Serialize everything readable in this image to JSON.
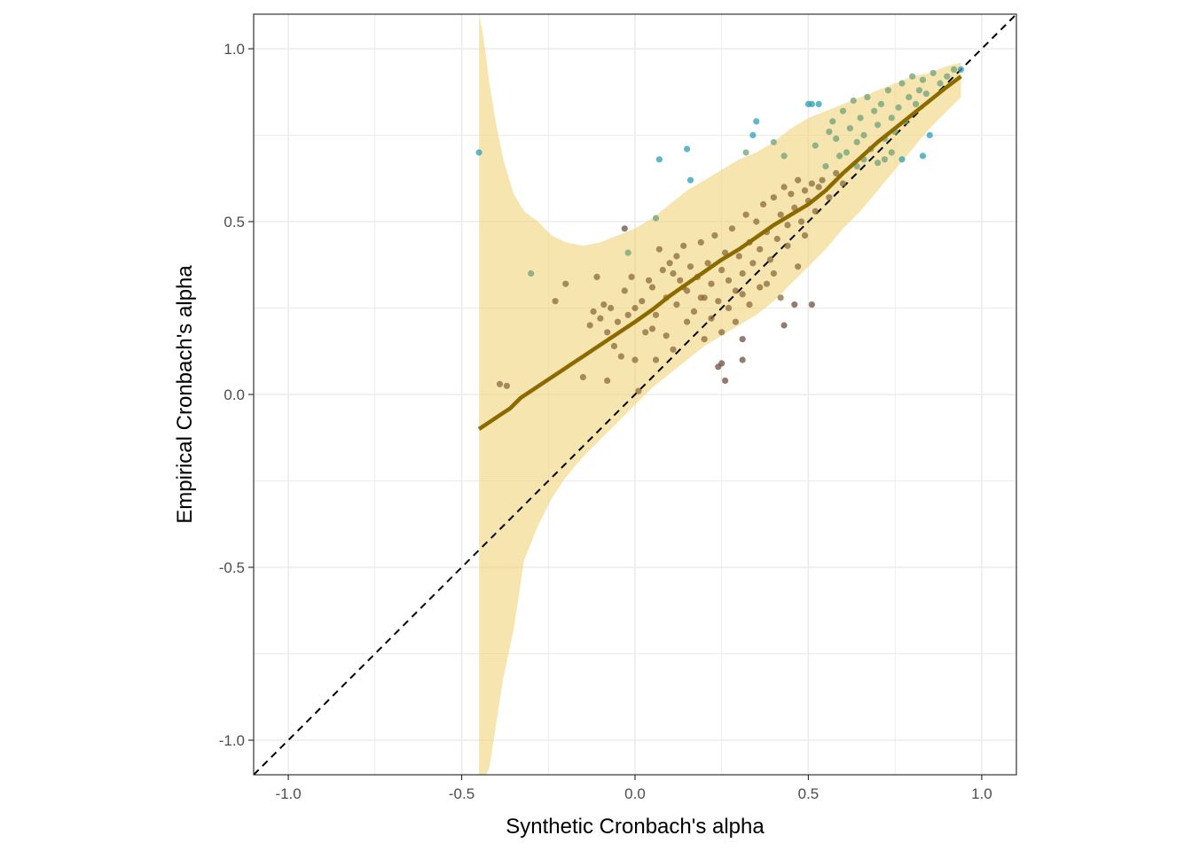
{
  "chart_data": {
    "type": "scatter",
    "title": "",
    "xlabel": "Synthetic Cronbach's alpha",
    "ylabel": "Empirical Cronbach's alpha",
    "xlim": [
      -1.1,
      1.1
    ],
    "ylim": [
      -1.1,
      1.1
    ],
    "x_ticks": [
      -1.0,
      -0.5,
      0.0,
      0.5,
      1.0
    ],
    "y_ticks": [
      -1.0,
      -0.5,
      0.0,
      0.5,
      1.0
    ],
    "x_tick_labels": [
      "-1.0",
      "-0.5",
      "0.0",
      "0.5",
      "1.0"
    ],
    "y_tick_labels": [
      "-1.0",
      "-0.5",
      "0.0",
      "0.5",
      "1.0"
    ],
    "grid": true,
    "legend": "none",
    "colors": {
      "band": "#f0d479",
      "fit_line": "#8b6a00",
      "reference_line": "#000000",
      "points_brown": "#8b6a3e",
      "points_green": "#6fa07a",
      "points_teal": "#2f9db5",
      "points_dark": "#6e5040"
    },
    "reference_line": {
      "slope": 1,
      "intercept": 0,
      "style": "dashed"
    },
    "fit_line": {
      "x": [
        -0.45,
        -0.42,
        -0.39,
        -0.36,
        -0.33,
        -0.3,
        -0.27,
        -0.24,
        -0.21,
        -0.18,
        -0.15,
        -0.12,
        -0.09,
        -0.06,
        -0.03,
        0.0,
        0.05,
        0.1,
        0.15,
        0.2,
        0.25,
        0.3,
        0.35,
        0.4,
        0.45,
        0.5,
        0.55,
        0.6,
        0.65,
        0.7,
        0.75,
        0.8,
        0.85,
        0.9,
        0.94
      ],
      "y": [
        -0.1,
        -0.08,
        -0.06,
        -0.04,
        -0.01,
        0.01,
        0.03,
        0.05,
        0.07,
        0.09,
        0.11,
        0.13,
        0.15,
        0.17,
        0.19,
        0.21,
        0.245,
        0.285,
        0.32,
        0.355,
        0.39,
        0.42,
        0.455,
        0.49,
        0.52,
        0.55,
        0.59,
        0.64,
        0.685,
        0.73,
        0.77,
        0.81,
        0.85,
        0.89,
        0.92
      ]
    },
    "band": {
      "x": [
        -0.45,
        -0.44,
        -0.43,
        -0.42,
        -0.4,
        -0.38,
        -0.35,
        -0.32,
        -0.28,
        -0.24,
        -0.2,
        -0.15,
        -0.1,
        -0.05,
        0.0,
        0.05,
        0.1,
        0.15,
        0.2,
        0.25,
        0.3,
        0.35,
        0.4,
        0.45,
        0.5,
        0.55,
        0.6,
        0.65,
        0.7,
        0.75,
        0.8,
        0.85,
        0.9,
        0.94
      ],
      "upper": [
        1.1,
        1.05,
        0.98,
        0.9,
        0.78,
        0.68,
        0.58,
        0.53,
        0.5,
        0.46,
        0.44,
        0.43,
        0.44,
        0.46,
        0.48,
        0.51,
        0.55,
        0.59,
        0.62,
        0.65,
        0.68,
        0.7,
        0.73,
        0.77,
        0.8,
        0.82,
        0.84,
        0.86,
        0.88,
        0.9,
        0.92,
        0.93,
        0.95,
        0.96
      ],
      "lower": [
        -1.1,
        -1.1,
        -1.1,
        -1.08,
        -0.95,
        -0.82,
        -0.68,
        -0.48,
        -0.38,
        -0.3,
        -0.24,
        -0.18,
        -0.13,
        -0.08,
        -0.03,
        0.02,
        0.06,
        0.1,
        0.14,
        0.17,
        0.2,
        0.23,
        0.27,
        0.32,
        0.37,
        0.42,
        0.48,
        0.53,
        0.59,
        0.65,
        0.71,
        0.77,
        0.82,
        0.86
      ]
    },
    "series": [
      {
        "color": "#8b6a3e",
        "points": [
          [
            -0.39,
            0.03
          ],
          [
            -0.37,
            0.025
          ],
          [
            -0.23,
            0.27
          ],
          [
            -0.2,
            0.32
          ],
          [
            -0.15,
            0.05
          ],
          [
            -0.13,
            0.2
          ],
          [
            -0.12,
            0.24
          ],
          [
            -0.11,
            0.34
          ],
          [
            -0.1,
            0.22
          ],
          [
            -0.09,
            0.26
          ],
          [
            -0.08,
            0.18
          ],
          [
            -0.08,
            0.04
          ],
          [
            -0.07,
            0.25
          ],
          [
            -0.06,
            0.14
          ],
          [
            -0.05,
            0.21
          ],
          [
            -0.04,
            0.11
          ],
          [
            -0.03,
            0.3
          ],
          [
            -0.02,
            0.23
          ],
          [
            -0.01,
            0.34
          ],
          [
            0.0,
            0.25
          ],
          [
            0.0,
            0.1
          ],
          [
            0.01,
            0.01
          ],
          [
            0.02,
            0.27
          ],
          [
            0.03,
            0.18
          ],
          [
            0.04,
            0.33
          ],
          [
            0.05,
            0.31
          ],
          [
            0.06,
            0.23
          ],
          [
            0.06,
            0.1
          ],
          [
            0.07,
            0.42
          ],
          [
            0.08,
            0.36
          ],
          [
            0.09,
            0.28
          ],
          [
            0.1,
            0.38
          ],
          [
            0.11,
            0.35
          ],
          [
            0.12,
            0.26
          ],
          [
            0.12,
            0.4
          ],
          [
            0.13,
            0.33
          ],
          [
            0.14,
            0.43
          ],
          [
            0.15,
            0.3
          ],
          [
            0.16,
            0.37
          ],
          [
            0.17,
            0.24
          ],
          [
            0.18,
            0.34
          ],
          [
            0.19,
            0.44
          ],
          [
            0.2,
            0.28
          ],
          [
            0.21,
            0.38
          ],
          [
            0.22,
            0.32
          ],
          [
            0.23,
            0.46
          ],
          [
            0.24,
            0.27
          ],
          [
            0.25,
            0.36
          ],
          [
            0.26,
            0.41
          ],
          [
            0.27,
            0.33
          ],
          [
            0.28,
            0.48
          ],
          [
            0.29,
            0.3
          ],
          [
            0.3,
            0.4
          ],
          [
            0.31,
            0.35
          ],
          [
            0.32,
            0.52
          ],
          [
            0.33,
            0.44
          ],
          [
            0.34,
            0.38
          ],
          [
            0.35,
            0.5
          ],
          [
            0.36,
            0.42
          ],
          [
            0.37,
            0.55
          ],
          [
            0.38,
            0.47
          ],
          [
            0.39,
            0.39
          ],
          [
            0.4,
            0.57
          ],
          [
            0.41,
            0.45
          ],
          [
            0.42,
            0.52
          ],
          [
            0.43,
            0.6
          ],
          [
            0.44,
            0.49
          ],
          [
            0.45,
            0.58
          ],
          [
            0.46,
            0.54
          ],
          [
            0.47,
            0.62
          ],
          [
            0.48,
            0.5
          ],
          [
            0.49,
            0.59
          ],
          [
            0.5,
            0.56
          ],
          [
            0.51,
            0.61
          ],
          [
            0.52,
            0.53
          ],
          [
            0.53,
            0.6
          ],
          [
            0.54,
            0.62
          ],
          [
            0.56,
            0.57
          ],
          [
            0.58,
            0.64
          ],
          [
            0.6,
            0.61
          ],
          [
            0.22,
            0.22
          ],
          [
            0.27,
            0.25
          ],
          [
            0.31,
            0.29
          ],
          [
            0.36,
            0.31
          ],
          [
            0.4,
            0.35
          ],
          [
            0.44,
            0.43
          ],
          [
            0.47,
            0.37
          ],
          [
            0.49,
            0.46
          ],
          [
            0.15,
            0.21
          ],
          [
            0.09,
            0.17
          ],
          [
            0.19,
            0.28
          ],
          [
            0.25,
            0.18
          ],
          [
            0.29,
            0.21
          ],
          [
            0.33,
            0.26
          ],
          [
            0.38,
            0.32
          ],
          [
            0.42,
            0.28
          ],
          [
            0.2,
            0.16
          ],
          [
            0.14,
            0.31
          ],
          [
            0.11,
            0.13
          ],
          [
            0.05,
            0.19
          ]
        ]
      },
      {
        "color": "#6fa07a",
        "points": [
          [
            -0.3,
            0.35
          ],
          [
            -0.02,
            0.41
          ],
          [
            0.06,
            0.51
          ],
          [
            0.32,
            0.7
          ],
          [
            0.4,
            0.73
          ],
          [
            0.43,
            0.69
          ],
          [
            0.52,
            0.72
          ],
          [
            0.55,
            0.66
          ],
          [
            0.57,
            0.79
          ],
          [
            0.58,
            0.74
          ],
          [
            0.6,
            0.82
          ],
          [
            0.61,
            0.7
          ],
          [
            0.62,
            0.77
          ],
          [
            0.63,
            0.85
          ],
          [
            0.64,
            0.73
          ],
          [
            0.65,
            0.8
          ],
          [
            0.66,
            0.75
          ],
          [
            0.67,
            0.86
          ],
          [
            0.68,
            0.71
          ],
          [
            0.69,
            0.82
          ],
          [
            0.7,
            0.78
          ],
          [
            0.71,
            0.84
          ],
          [
            0.72,
            0.74
          ],
          [
            0.73,
            0.88
          ],
          [
            0.74,
            0.8
          ],
          [
            0.75,
            0.76
          ],
          [
            0.76,
            0.83
          ],
          [
            0.77,
            0.9
          ],
          [
            0.78,
            0.79
          ],
          [
            0.79,
            0.86
          ],
          [
            0.8,
            0.92
          ],
          [
            0.81,
            0.84
          ],
          [
            0.82,
            0.88
          ],
          [
            0.83,
            0.91
          ],
          [
            0.84,
            0.87
          ],
          [
            0.86,
            0.93
          ],
          [
            0.88,
            0.9
          ],
          [
            0.9,
            0.92
          ],
          [
            0.92,
            0.94
          ],
          [
            0.7,
            0.67
          ],
          [
            0.72,
            0.68
          ],
          [
            0.74,
            0.7
          ],
          [
            0.66,
            0.68
          ],
          [
            0.64,
            0.66
          ],
          [
            0.59,
            0.69
          ],
          [
            0.56,
            0.76
          ]
        ]
      },
      {
        "color": "#2f9db5",
        "points": [
          [
            -0.45,
            0.7
          ],
          [
            0.07,
            0.68
          ],
          [
            0.15,
            0.71
          ],
          [
            0.16,
            0.62
          ],
          [
            0.34,
            0.75
          ],
          [
            0.35,
            0.79
          ],
          [
            0.5,
            0.84
          ],
          [
            0.51,
            0.84
          ],
          [
            0.53,
            0.84
          ],
          [
            0.77,
            0.68
          ],
          [
            0.83,
            0.69
          ],
          [
            0.85,
            0.75
          ],
          [
            0.94,
            0.94
          ]
        ]
      },
      {
        "color": "#6e5040",
        "points": [
          [
            -0.03,
            0.48
          ],
          [
            0.24,
            0.08
          ],
          [
            0.25,
            0.09
          ],
          [
            0.26,
            0.04
          ],
          [
            0.31,
            0.1
          ],
          [
            0.31,
            0.16
          ],
          [
            0.43,
            0.2
          ],
          [
            0.46,
            0.26
          ],
          [
            0.51,
            0.26
          ]
        ]
      }
    ]
  }
}
